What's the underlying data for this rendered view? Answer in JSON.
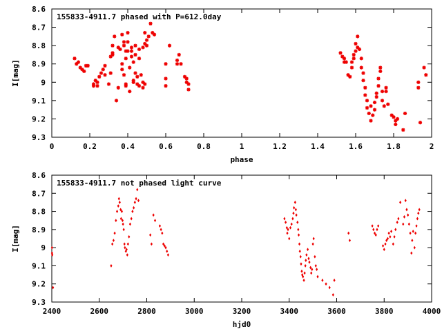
{
  "chart_data": [
    {
      "type": "scatter",
      "title": "155833-4911.7 phased with P=612.0day",
      "xlabel": "phase",
      "ylabel": "I[mag]",
      "xlim": [
        0,
        2
      ],
      "ylim": [
        8.6,
        9.3
      ],
      "y_inverted": true,
      "grid": false,
      "marker_color": "#ee0000",
      "x_ticks": [
        "0",
        "0.2",
        "0.4",
        "0.6",
        "0.8",
        "1",
        "1.2",
        "1.4",
        "1.6",
        "1.8",
        "2"
      ],
      "x_tick_values": [
        0,
        0.2,
        0.4,
        0.6,
        0.8,
        1,
        1.2,
        1.4,
        1.6,
        1.8,
        2
      ],
      "y_ticks": [
        "8.6",
        "8.7",
        "8.8",
        "8.9",
        "9",
        "9.1",
        "9.2",
        "9.3"
      ],
      "y_tick_values": [
        8.6,
        8.7,
        8.8,
        8.9,
        9.0,
        9.1,
        9.2,
        9.3
      ],
      "points": [
        [
          0.12,
          8.87
        ],
        [
          0.13,
          8.9
        ],
        [
          0.14,
          8.89
        ],
        [
          0.15,
          8.92
        ],
        [
          0.16,
          8.93
        ],
        [
          0.17,
          8.94
        ],
        [
          0.18,
          8.91
        ],
        [
          0.19,
          8.91
        ],
        [
          0.22,
          9.01
        ],
        [
          0.22,
          9.02
        ],
        [
          0.23,
          8.99
        ],
        [
          0.24,
          9.0
        ],
        [
          0.24,
          9.02
        ],
        [
          0.25,
          8.97
        ],
        [
          0.26,
          8.95
        ],
        [
          0.27,
          8.93
        ],
        [
          0.28,
          8.91
        ],
        [
          0.28,
          8.96
        ],
        [
          0.3,
          9.01
        ],
        [
          0.31,
          8.95
        ],
        [
          0.31,
          8.86
        ],
        [
          0.32,
          8.84
        ],
        [
          0.32,
          8.85
        ],
        [
          0.32,
          8.8
        ],
        [
          0.33,
          8.75
        ],
        [
          0.34,
          9.1
        ],
        [
          0.35,
          9.03
        ],
        [
          0.35,
          8.81
        ],
        [
          0.36,
          8.82
        ],
        [
          0.37,
          8.9
        ],
        [
          0.37,
          8.93
        ],
        [
          0.37,
          8.74
        ],
        [
          0.38,
          8.8
        ],
        [
          0.38,
          8.78
        ],
        [
          0.38,
          8.96
        ],
        [
          0.39,
          8.83
        ],
        [
          0.39,
          8.87
        ],
        [
          0.39,
          9.01
        ],
        [
          0.39,
          9.02
        ],
        [
          0.4,
          8.73
        ],
        [
          0.4,
          8.78
        ],
        [
          0.4,
          8.83
        ],
        [
          0.41,
          8.92
        ],
        [
          0.41,
          9.05
        ],
        [
          0.42,
          8.83
        ],
        [
          0.42,
          8.81
        ],
        [
          0.42,
          8.86
        ],
        [
          0.43,
          8.89
        ],
        [
          0.43,
          9.0
        ],
        [
          0.43,
          8.99
        ],
        [
          0.44,
          8.8
        ],
        [
          0.44,
          8.85
        ],
        [
          0.44,
          8.95
        ],
        [
          0.45,
          8.97
        ],
        [
          0.45,
          9.01
        ],
        [
          0.46,
          8.82
        ],
        [
          0.46,
          8.87
        ],
        [
          0.46,
          9.02
        ],
        [
          0.47,
          8.96
        ],
        [
          0.48,
          9.0
        ],
        [
          0.48,
          9.03
        ],
        [
          0.48,
          8.81
        ],
        [
          0.49,
          8.73
        ],
        [
          0.49,
          8.79
        ],
        [
          0.49,
          9.01
        ],
        [
          0.5,
          8.77
        ],
        [
          0.5,
          8.8
        ],
        [
          0.51,
          8.75
        ],
        [
          0.52,
          8.68
        ],
        [
          0.53,
          8.73
        ],
        [
          0.54,
          8.74
        ],
        [
          0.6,
          8.9
        ],
        [
          0.6,
          8.98
        ],
        [
          0.6,
          9.02
        ],
        [
          0.62,
          8.8
        ],
        [
          0.66,
          8.88
        ],
        [
          0.66,
          8.9
        ],
        [
          0.67,
          8.85
        ],
        [
          0.68,
          8.9
        ],
        [
          0.7,
          8.97
        ],
        [
          0.71,
          8.98
        ],
        [
          0.71,
          9.0
        ],
        [
          0.72,
          9.01
        ],
        [
          0.72,
          9.04
        ],
        [
          1.52,
          8.84
        ],
        [
          1.53,
          8.86
        ],
        [
          1.54,
          8.89
        ],
        [
          1.54,
          8.87
        ],
        [
          1.55,
          8.89
        ],
        [
          1.56,
          8.96
        ],
        [
          1.57,
          8.97
        ],
        [
          1.58,
          8.89
        ],
        [
          1.58,
          8.92
        ],
        [
          1.59,
          8.85
        ],
        [
          1.59,
          8.87
        ],
        [
          1.6,
          8.79
        ],
        [
          1.6,
          8.83
        ],
        [
          1.61,
          8.75
        ],
        [
          1.61,
          8.81
        ],
        [
          1.62,
          8.82
        ],
        [
          1.63,
          8.87
        ],
        [
          1.63,
          8.92
        ],
        [
          1.64,
          8.95
        ],
        [
          1.64,
          8.99
        ],
        [
          1.65,
          9.03
        ],
        [
          1.65,
          9.07
        ],
        [
          1.66,
          9.1
        ],
        [
          1.66,
          9.14
        ],
        [
          1.67,
          9.17
        ],
        [
          1.68,
          9.21
        ],
        [
          1.68,
          9.13
        ],
        [
          1.69,
          9.18
        ],
        [
          1.7,
          9.15
        ],
        [
          1.7,
          9.11
        ],
        [
          1.71,
          9.08
        ],
        [
          1.71,
          9.06
        ],
        [
          1.72,
          9.02
        ],
        [
          1.72,
          8.98
        ],
        [
          1.73,
          8.92
        ],
        [
          1.73,
          8.94
        ],
        [
          1.74,
          9.05
        ],
        [
          1.74,
          9.1
        ],
        [
          1.75,
          9.13
        ],
        [
          1.76,
          9.03
        ],
        [
          1.76,
          9.05
        ],
        [
          1.77,
          9.12
        ],
        [
          1.79,
          9.18
        ],
        [
          1.8,
          9.19
        ],
        [
          1.81,
          9.21
        ],
        [
          1.81,
          9.23
        ],
        [
          1.82,
          9.2
        ],
        [
          1.85,
          9.26
        ],
        [
          1.86,
          9.17
        ],
        [
          1.93,
          9.03
        ],
        [
          1.93,
          9.0
        ],
        [
          1.94,
          9.22
        ],
        [
          1.96,
          8.92
        ],
        [
          1.97,
          8.96
        ]
      ]
    },
    {
      "type": "scatter",
      "title": "155833-4911.7 not phased light curve",
      "xlabel": "hjd0",
      "ylabel": "I[mag]",
      "xlim": [
        2400,
        4000
      ],
      "ylim": [
        8.6,
        9.3
      ],
      "y_inverted": true,
      "grid": false,
      "marker_color": "#ee0000",
      "x_ticks": [
        "2400",
        "2600",
        "2800",
        "3000",
        "3200",
        "3400",
        "3600",
        "3800",
        "4000"
      ],
      "x_tick_values": [
        2400,
        2600,
        2800,
        3000,
        3200,
        3400,
        3600,
        3800,
        4000
      ],
      "y_ticks": [
        "8.6",
        "8.7",
        "8.8",
        "8.9",
        "9",
        "9.1",
        "9.2",
        "9.3"
      ],
      "y_tick_values": [
        8.6,
        8.7,
        8.8,
        8.9,
        9.0,
        9.1,
        9.2,
        9.3
      ],
      "points": [
        [
          2401,
          9.0
        ],
        [
          2401,
          9.03
        ],
        [
          2402,
          9.04
        ],
        [
          2405,
          9.22
        ],
        [
          2650,
          9.1
        ],
        [
          2655,
          8.98
        ],
        [
          2660,
          8.96
        ],
        [
          2665,
          8.92
        ],
        [
          2670,
          8.85
        ],
        [
          2675,
          8.8
        ],
        [
          2680,
          8.77
        ],
        [
          2683,
          8.73
        ],
        [
          2686,
          8.75
        ],
        [
          2690,
          8.79
        ],
        [
          2692,
          8.84
        ],
        [
          2695,
          8.8
        ],
        [
          2698,
          8.85
        ],
        [
          2700,
          8.87
        ],
        [
          2703,
          8.9
        ],
        [
          2706,
          8.98
        ],
        [
          2708,
          9.0
        ],
        [
          2712,
          9.02
        ],
        [
          2715,
          9.01
        ],
        [
          2718,
          9.04
        ],
        [
          2721,
          8.98
        ],
        [
          2725,
          8.94
        ],
        [
          2730,
          8.87
        ],
        [
          2735,
          8.84
        ],
        [
          2740,
          8.8
        ],
        [
          2745,
          8.78
        ],
        [
          2750,
          8.75
        ],
        [
          2755,
          8.73
        ],
        [
          2760,
          8.68
        ],
        [
          2765,
          8.74
        ],
        [
          2815,
          8.93
        ],
        [
          2820,
          8.98
        ],
        [
          2828,
          8.82
        ],
        [
          2835,
          8.85
        ],
        [
          2855,
          8.88
        ],
        [
          2860,
          8.9
        ],
        [
          2865,
          8.92
        ],
        [
          2870,
          8.98
        ],
        [
          2875,
          8.99
        ],
        [
          2880,
          9.0
        ],
        [
          2885,
          9.02
        ],
        [
          2890,
          9.04
        ],
        [
          3380,
          8.84
        ],
        [
          3385,
          8.86
        ],
        [
          3390,
          8.89
        ],
        [
          3392,
          8.92
        ],
        [
          3395,
          8.9
        ],
        [
          3400,
          8.95
        ],
        [
          3405,
          8.89
        ],
        [
          3410,
          8.87
        ],
        [
          3415,
          8.84
        ],
        [
          3418,
          8.81
        ],
        [
          3420,
          8.78
        ],
        [
          3425,
          8.75
        ],
        [
          3428,
          8.79
        ],
        [
          3430,
          8.82
        ],
        [
          3435,
          8.86
        ],
        [
          3438,
          8.9
        ],
        [
          3440,
          8.93
        ],
        [
          3443,
          8.98
        ],
        [
          3445,
          9.02
        ],
        [
          3448,
          9.05
        ],
        [
          3450,
          9.09
        ],
        [
          3453,
          9.13
        ],
        [
          3455,
          9.15
        ],
        [
          3458,
          9.16
        ],
        [
          3462,
          9.18
        ],
        [
          3465,
          9.14
        ],
        [
          3468,
          9.1
        ],
        [
          3470,
          9.07
        ],
        [
          3473,
          9.04
        ],
        [
          3478,
          9.01
        ],
        [
          3482,
          9.06
        ],
        [
          3485,
          9.08
        ],
        [
          3490,
          9.11
        ],
        [
          3493,
          9.14
        ],
        [
          3496,
          9.12
        ],
        [
          3500,
          8.98
        ],
        [
          3503,
          8.95
        ],
        [
          3508,
          9.05
        ],
        [
          3512,
          9.1
        ],
        [
          3516,
          9.12
        ],
        [
          3520,
          9.16
        ],
        [
          3540,
          9.18
        ],
        [
          3555,
          9.2
        ],
        [
          3570,
          9.22
        ],
        [
          3585,
          9.26
        ],
        [
          3590,
          9.18
        ],
        [
          3650,
          8.92
        ],
        [
          3655,
          8.96
        ],
        [
          3750,
          8.88
        ],
        [
          3755,
          8.9
        ],
        [
          3760,
          8.92
        ],
        [
          3765,
          8.93
        ],
        [
          3770,
          8.9
        ],
        [
          3775,
          8.88
        ],
        [
          3795,
          8.99
        ],
        [
          3800,
          9.01
        ],
        [
          3805,
          8.98
        ],
        [
          3810,
          8.96
        ],
        [
          3815,
          8.95
        ],
        [
          3820,
          8.92
        ],
        [
          3825,
          8.94
        ],
        [
          3830,
          8.91
        ],
        [
          3838,
          8.98
        ],
        [
          3843,
          8.94
        ],
        [
          3848,
          8.9
        ],
        [
          3855,
          8.86
        ],
        [
          3860,
          8.84
        ],
        [
          3868,
          8.75
        ],
        [
          3880,
          8.87
        ],
        [
          3885,
          8.83
        ],
        [
          3890,
          8.74
        ],
        [
          3895,
          8.79
        ],
        [
          3900,
          8.82
        ],
        [
          3905,
          8.87
        ],
        [
          3910,
          8.92
        ],
        [
          3915,
          9.03
        ],
        [
          3918,
          8.96
        ],
        [
          3922,
          8.91
        ],
        [
          3928,
          9.0
        ],
        [
          3932,
          8.92
        ],
        [
          3936,
          8.88
        ],
        [
          3940,
          8.84
        ],
        [
          3944,
          8.81
        ],
        [
          3948,
          8.79
        ]
      ]
    }
  ]
}
